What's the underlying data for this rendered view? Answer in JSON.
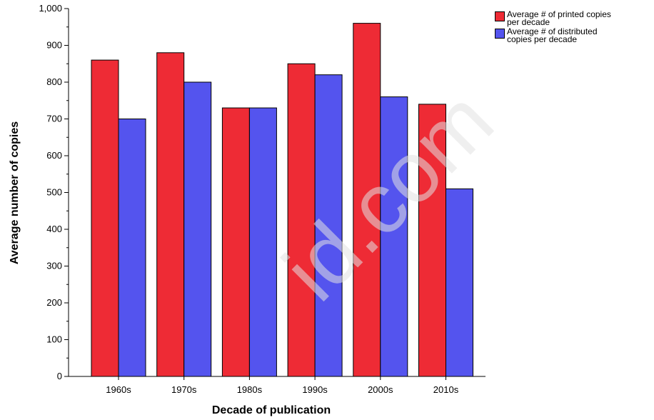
{
  "chart_data": {
    "type": "bar",
    "xlabel": "Decade of publication",
    "ylabel": "Average number of copies",
    "categories": [
      "1960s",
      "1970s",
      "1980s",
      "1990s",
      "2000s",
      "2010s"
    ],
    "series": [
      {
        "name": "Average # of printed copies per decade",
        "color": "#ee2b35",
        "values": [
          860,
          880,
          730,
          850,
          960,
          740
        ]
      },
      {
        "name": "Average # of distributed copies per decade",
        "color": "#5454ee",
        "values": [
          700,
          800,
          730,
          820,
          760,
          510
        ]
      }
    ],
    "ylim": [
      0,
      1000
    ],
    "yticks": [
      0,
      100,
      200,
      300,
      400,
      500,
      600,
      700,
      800,
      900,
      1000
    ],
    "ytick_labels": [
      "0",
      "100",
      "200",
      "300",
      "400",
      "500",
      "600",
      "700",
      "800",
      "900",
      "1,000"
    ],
    "grid": false,
    "legend_position": "top-right"
  },
  "legend": {
    "items": [
      {
        "label_line1": "Average # of printed copies",
        "label_line2": "per decade",
        "color": "#ee2b35"
      },
      {
        "label_line1": "Average # of distributed",
        "label_line2": "copies per decade",
        "color": "#5454ee"
      }
    ]
  },
  "watermark_text": "id.com"
}
